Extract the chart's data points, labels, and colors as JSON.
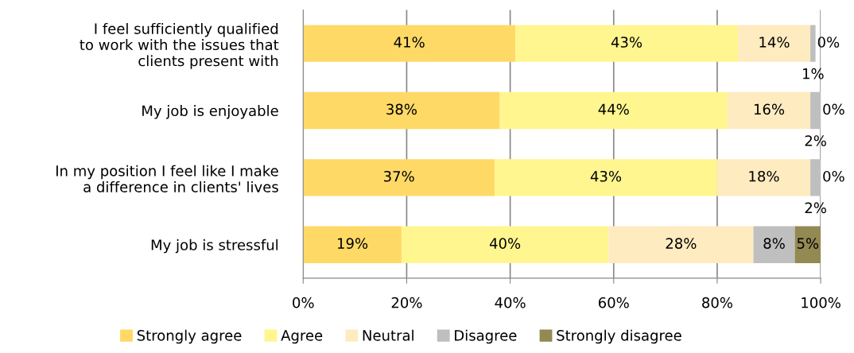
{
  "chart_data": {
    "type": "bar",
    "orientation": "horizontal",
    "stacked": true,
    "grid": "x",
    "legend": "bottom",
    "categories": [
      "I feel sufficiently qualified\nto work with the issues that\nclients present with",
      "My job is enjoyable",
      "In my position I feel like I make\na difference in clients' lives",
      "My job is stressful"
    ],
    "series": [
      {
        "name": "Strongly agree",
        "color": "#ffd966",
        "values": [
          41,
          38,
          37,
          19
        ],
        "value_labels": [
          "41%",
          "38%",
          "37%",
          "19%"
        ]
      },
      {
        "name": "Agree",
        "color": "#fff68f",
        "values": [
          43,
          44,
          43,
          40
        ],
        "value_labels": [
          "43%",
          "44%",
          "43%",
          "40%"
        ]
      },
      {
        "name": "Neutral",
        "color": "#ffebc0",
        "values": [
          14,
          16,
          18,
          28
        ],
        "value_labels": [
          "14%",
          "16%",
          "18%",
          "28%"
        ]
      },
      {
        "name": "Disagree",
        "color": "#bfbfbf",
        "values": [
          1,
          2,
          2,
          8
        ],
        "value_labels": [
          "1%",
          "2%",
          "2%",
          "8%"
        ]
      },
      {
        "name": "Strongly disagree",
        "color": "#938953",
        "values": [
          0,
          0,
          0,
          5
        ],
        "value_labels": [
          "0%",
          "0%",
          "0%",
          "5%"
        ]
      }
    ],
    "xlim": [
      0,
      100
    ],
    "xticks": [
      {
        "value": 0,
        "label": "0%"
      },
      {
        "value": 20,
        "label": "20%"
      },
      {
        "value": 40,
        "label": "40%"
      },
      {
        "value": 60,
        "label": "60%"
      },
      {
        "value": 80,
        "label": "80%"
      },
      {
        "value": 100,
        "label": "100%"
      }
    ]
  }
}
